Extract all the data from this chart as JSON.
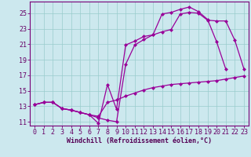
{
  "xlabel": "Windchill (Refroidissement éolien,°C)",
  "bg_color": "#cce8ee",
  "line_color": "#990099",
  "grid_color": "#99cccc",
  "xlim": [
    -0.5,
    23.5
  ],
  "ylim": [
    10.5,
    26.5
  ],
  "xticks": [
    0,
    1,
    2,
    3,
    4,
    5,
    6,
    7,
    8,
    9,
    10,
    11,
    12,
    13,
    14,
    15,
    16,
    17,
    18,
    19,
    20,
    21,
    22,
    23
  ],
  "yticks": [
    11,
    13,
    15,
    17,
    19,
    21,
    23,
    25
  ],
  "line1_x": [
    0,
    1,
    2,
    3,
    4,
    5,
    6,
    7,
    8,
    9,
    10,
    11,
    12,
    13,
    14,
    15,
    16,
    17,
    18,
    19,
    20,
    21
  ],
  "line1_y": [
    13.2,
    13.5,
    13.5,
    12.7,
    12.5,
    12.2,
    11.9,
    10.8,
    15.8,
    12.6,
    20.9,
    21.4,
    22.0,
    22.2,
    24.9,
    25.1,
    25.5,
    25.8,
    25.2,
    24.2,
    21.3,
    17.8
  ],
  "line2_x": [
    0,
    1,
    2,
    3,
    4,
    5,
    6,
    7,
    8,
    9,
    10,
    11,
    12,
    13,
    14,
    15,
    16,
    17,
    18,
    19,
    20,
    21,
    22,
    23
  ],
  "line2_y": [
    13.2,
    13.5,
    13.5,
    12.7,
    12.5,
    12.2,
    11.9,
    11.5,
    11.2,
    11.0,
    18.4,
    20.9,
    21.6,
    22.2,
    22.6,
    22.9,
    24.9,
    25.1,
    25.0,
    24.1,
    24.0,
    24.0,
    21.5,
    17.8
  ],
  "line3_x": [
    0,
    1,
    2,
    3,
    4,
    5,
    6,
    7,
    8,
    9,
    10,
    11,
    12,
    13,
    14,
    15,
    16,
    17,
    18,
    19,
    20,
    21,
    22,
    23
  ],
  "line3_y": [
    13.2,
    13.5,
    13.5,
    12.7,
    12.5,
    12.2,
    11.9,
    11.7,
    13.5,
    13.8,
    14.3,
    14.7,
    15.1,
    15.4,
    15.6,
    15.8,
    15.9,
    16.0,
    16.1,
    16.2,
    16.3,
    16.5,
    16.7,
    16.9
  ],
  "font_size": 6.0,
  "marker_size": 2.5,
  "lw": 0.9
}
